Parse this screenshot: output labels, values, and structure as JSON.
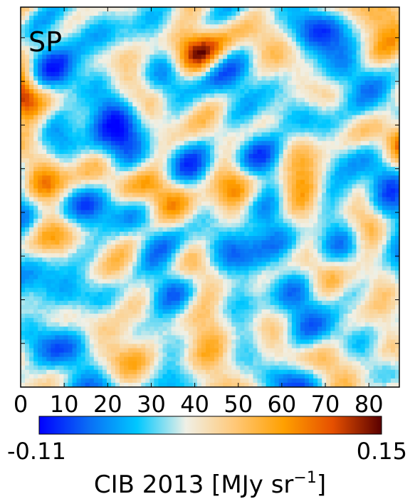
{
  "chart_data": {
    "type": "heatmap",
    "panel_label": "SP",
    "x_ticks": [
      0,
      10,
      20,
      30,
      40,
      50,
      60,
      70,
      80
    ],
    "xlim": [
      0,
      87
    ],
    "ylim": [
      0,
      87
    ],
    "grid_size": 88,
    "colorbar": {
      "min": -0.11,
      "max": 0.15,
      "min_label": "-0.11",
      "max_label": "0.15",
      "label_main": "CIB 2013 [MJy sr",
      "label_sup": "−1",
      "label_close": "]",
      "colors": [
        "#0000ff",
        "#0a6cf5",
        "#00c8ff",
        "#f0f0e6",
        "#ffc878",
        "#ffa000",
        "#e65000",
        "#5a0000"
      ],
      "location": "bottom"
    }
  }
}
